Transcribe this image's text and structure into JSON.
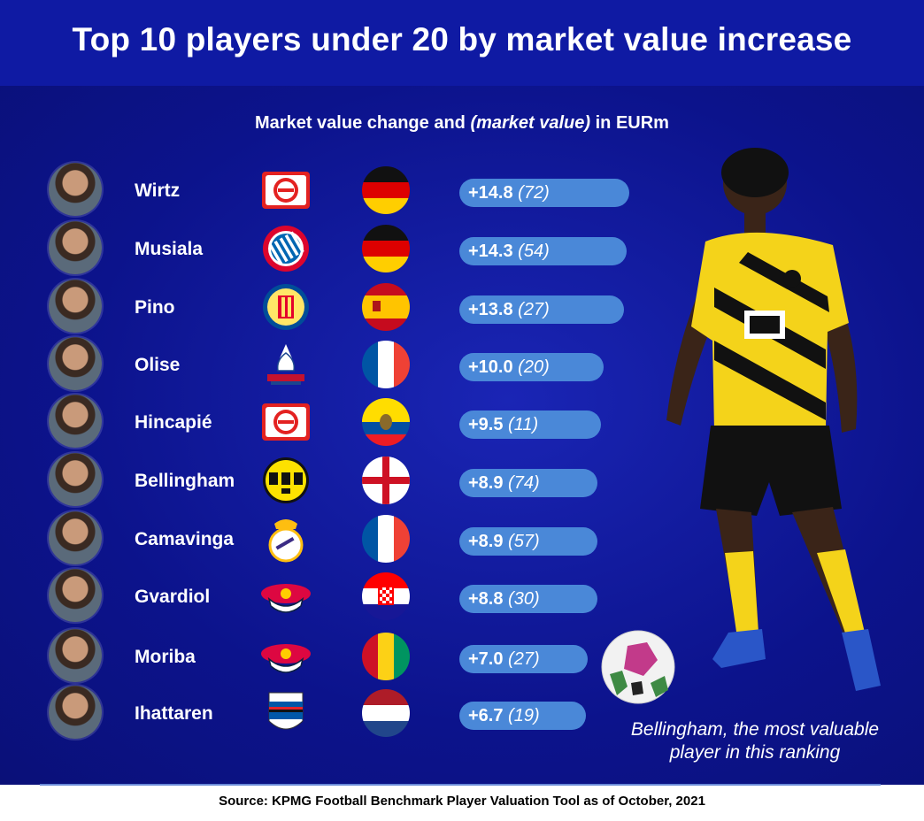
{
  "header": {
    "title": "Top 10 players under 20 by market value increase"
  },
  "source": "Source: KPMG Football Benchmark Player Valuation Tool as of October, 2021",
  "caption": {
    "line1": "Bellingham, the most valuable",
    "line2": "player in this ranking"
  },
  "colors": {
    "header": "#0f1aa3",
    "panel": "#0c138c",
    "bar": "#4a88d8",
    "text": "#ffffff"
  },
  "chart_data": {
    "type": "bar",
    "title": "Top 10 players under 20 by market value increase",
    "subtitle": {
      "prefix": "Market value change and ",
      "italic": "(market value)",
      "suffix": " in EURm"
    },
    "orientation": "horizontal",
    "categories": [
      "Wirtz",
      "Musiala",
      "Pino",
      "Olise",
      "Hincapié",
      "Bellingham",
      "Camavinga",
      "Gvardiol",
      "Moriba",
      "Ihattaren"
    ],
    "values": [
      14.8,
      14.3,
      13.8,
      10.0,
      9.5,
      8.9,
      8.9,
      8.8,
      7.0,
      6.7
    ],
    "value_labels": [
      "+14.8",
      "+14.3",
      "+13.8",
      "+10.0",
      "+9.5",
      "+8.9",
      "+8.9",
      "+8.8",
      "+7.0",
      "+6.7"
    ],
    "market_value_labels": [
      "(72)",
      "(54)",
      "(27)",
      "(20)",
      "(11)",
      "(74)",
      "(57)",
      "(30)",
      "(27)",
      "(19)"
    ],
    "clubs": [
      "bayer-leverkusen-crest",
      "fc-bayern-crest",
      "villarreal-crest",
      "crystal-palace-crest",
      "bayer-leverkusen-crest",
      "borussia-dortmund-crest",
      "real-madrid-crest",
      "rb-leipzig-crest",
      "rb-leipzig-crest",
      "sampdoria-crest"
    ],
    "flags": [
      "germany",
      "germany",
      "spain",
      "france",
      "ecuador",
      "england",
      "france",
      "croatia",
      "guinea",
      "netherlands"
    ],
    "xlim": [
      0,
      15
    ]
  }
}
